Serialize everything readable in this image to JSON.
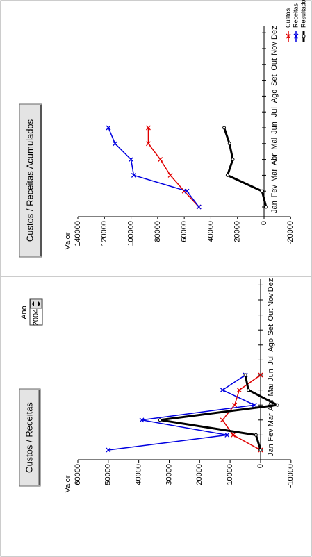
{
  "ano_label": "Ano",
  "ano_value": "2004",
  "chart_data": [
    {
      "type": "line",
      "title": "Custos / Receitas",
      "y_label": "Valor",
      "categories": [
        "Jan",
        "Fev",
        "Mar",
        "Abr",
        "Mai",
        "Jun",
        "Jul",
        "Ago",
        "Set",
        "Out",
        "Nov",
        "Dez"
      ],
      "series": [
        {
          "color": "#e00000",
          "marker": "x",
          "values": [
            0,
            9000,
            12500,
            8500,
            7000,
            0,
            null,
            null,
            null,
            null,
            null,
            null
          ]
        },
        {
          "color": "#0000e0",
          "marker": "x",
          "values": [
            50000,
            11000,
            39000,
            2000,
            12500,
            5000,
            null,
            null,
            null,
            null,
            null,
            null
          ]
        },
        {
          "color": "#000000",
          "marker": "o",
          "values": [
            0,
            1500,
            33000,
            -5500,
            4000,
            5000,
            null,
            null,
            null,
            null,
            null,
            null
          ]
        }
      ],
      "ylim": [
        -10000,
        60000
      ],
      "yticks": [
        -10000,
        0,
        10000,
        20000,
        30000,
        40000,
        50000,
        60000
      ]
    },
    {
      "type": "line",
      "title": "Custos / Receitas Acumulados",
      "y_label": "Valor",
      "categories": [
        "Jan",
        "Fev",
        "Mar",
        "Abr",
        "Mai",
        "Jun",
        "Jul",
        "Ago",
        "Set",
        "Out",
        "Nov",
        "Dez"
      ],
      "series": [
        {
          "name": "Custos",
          "color": "#e00000",
          "marker": "x",
          "values": [
            49000,
            60000,
            70500,
            78000,
            87000,
            87000,
            null,
            null,
            null,
            null,
            null,
            null
          ]
        },
        {
          "name": "Receitas",
          "color": "#0000e0",
          "marker": "x",
          "values": [
            49000,
            58000,
            98000,
            100000,
            112000,
            117000,
            null,
            null,
            null,
            null,
            null,
            null
          ]
        },
        {
          "name": "Resultado",
          "color": "#000000",
          "marker": "o",
          "values": [
            -1500,
            1500,
            27500,
            23500,
            26000,
            30000,
            null,
            null,
            null,
            null,
            null,
            null
          ]
        }
      ],
      "ylim": [
        -20000,
        140000
      ],
      "yticks": [
        -20000,
        0,
        20000,
        40000,
        60000,
        80000,
        100000,
        120000,
        140000
      ]
    }
  ]
}
